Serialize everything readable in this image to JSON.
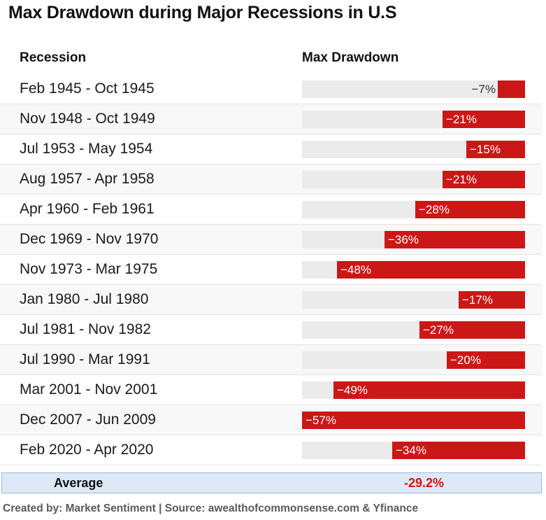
{
  "title": "Max Drawdown during Major Recessions in U.S",
  "headers": {
    "recession": "Recession",
    "drawdown": "Max Drawdown"
  },
  "chart_data": {
    "type": "bar",
    "orientation": "horizontal",
    "title": "Max Drawdown during Major Recessions in U.S",
    "categories": [
      "Feb 1945 - Oct 1945",
      "Nov 1948 - Oct 1949",
      "Jul 1953 - May 1954",
      "Aug 1957 - Apr 1958",
      "Apr 1960 - Feb 1961",
      "Dec 1969 - Nov 1970",
      "Nov 1973 - Mar 1975",
      "Jan 1980 - Jul 1980",
      "Jul 1981 - Nov 1982",
      "Jul 1990 - Mar 1991",
      "Mar 2001 - Nov 2001",
      "Dec 2007 - Jun 2009",
      "Feb 2020 - Apr 2020"
    ],
    "values": [
      -7,
      -21,
      -15,
      -21,
      -28,
      -36,
      -48,
      -17,
      -27,
      -20,
      -49,
      -57,
      -34
    ],
    "value_labels": [
      "-7%",
      "-21%",
      "-15%",
      "-21%",
      "-28%",
      "-36%",
      "-48%",
      "-17%",
      "-27%",
      "-20%",
      "-49%",
      "-57%",
      "-34%"
    ],
    "xlim": [
      -57,
      0
    ],
    "bar_color": "#cc1717",
    "track_color": "#ebebeb"
  },
  "average": {
    "label": "Average",
    "value": "-29.2%"
  },
  "footer": "Created by: Market Sentiment | Source: awealthofcommonsense.com & Yfinance"
}
